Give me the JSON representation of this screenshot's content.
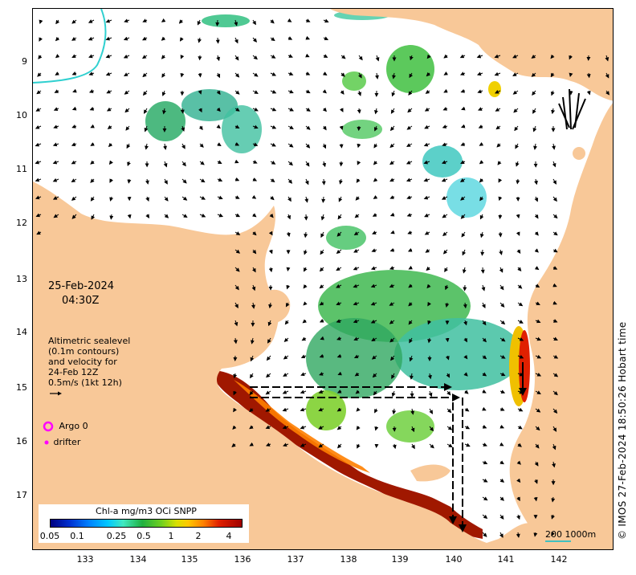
{
  "map": {
    "date": "25-Feb-2024",
    "time": "04:30Z",
    "altimetry_lines": [
      "Altimetric sealevel",
      "(0.1m contours)",
      "and velocity for",
      "24-Feb 12Z",
      "0.5m/s (1kt 12h)"
    ],
    "legend": {
      "argo_label": "Argo 0",
      "drifter_label": "drifter"
    },
    "colorbar": {
      "title": "Chl-a mg/m3 OCi SNPP",
      "ticks": [
        "0.05",
        "0.1",
        "0.25",
        "0.5",
        "1",
        "2",
        "4"
      ]
    },
    "latitude_ticks": [
      "9",
      "10",
      "11",
      "12",
      "13",
      "14",
      "15",
      "16",
      "17"
    ],
    "longitude_ticks": [
      "133",
      "134",
      "135",
      "136",
      "137",
      "138",
      "139",
      "140",
      "141",
      "142"
    ],
    "scale_bar": "200  1000m",
    "copyright": "© IMOS 27-Feb-2024 18:50:26 Hobart time",
    "colors": {
      "land": "#f8c898",
      "ocean": "#ffffff",
      "arrow": "#000000",
      "argo_marker": "#ff00ff",
      "drifter_marker": "#ff00ff",
      "contour": "#30d0d0"
    }
  }
}
